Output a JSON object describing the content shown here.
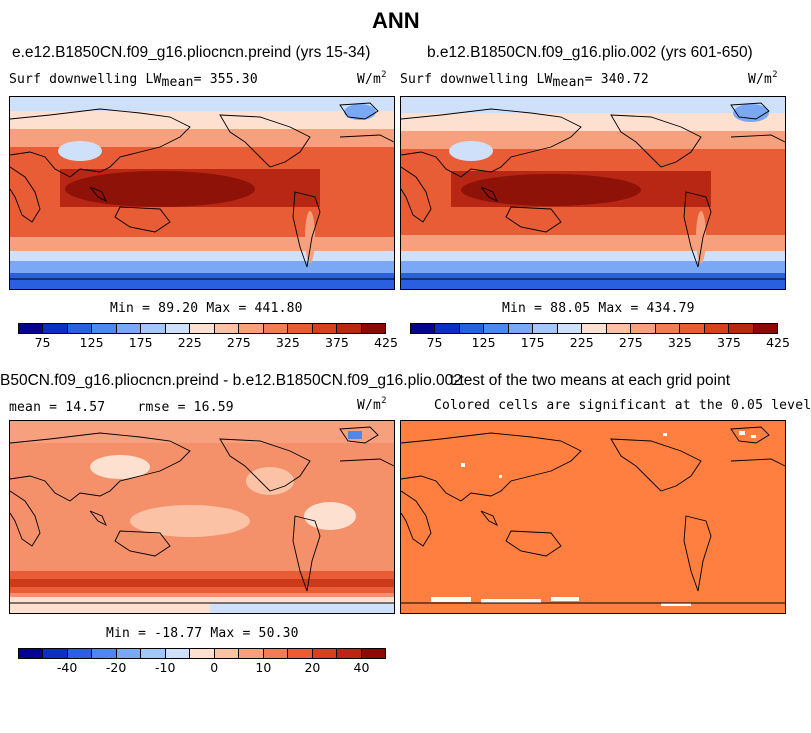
{
  "figure_title": "ANN",
  "units": {
    "prefix": "W/m",
    "exp": "2"
  },
  "panels": {
    "p1": {
      "title": "e.e12.B1850CN.f09_g16.pliocncn.preind (yrs 15-34)",
      "variable": "Surf downwelling LW",
      "mean_label": "mean",
      "mean": "355.30",
      "min": "89.20",
      "max": "441.80"
    },
    "p2": {
      "title": "b.e12.B1850CN.f09_g16.plio.002 (yrs 601-650)",
      "variable": "Surf downwelling LW",
      "mean_label": "mean",
      "mean": "340.72",
      "min": "88.05",
      "max": "434.79"
    },
    "p3": {
      "title": "B50CN.f09_g16.pliocncn.preind - b.e12.B1850CN.f09_g16.plio.002",
      "mean_label": "mean =",
      "mean": "14.57",
      "rmse_label": "rmse =",
      "rmse": "16.59",
      "min": "-18.77",
      "max": "50.30"
    },
    "p4": {
      "title": "t-test of the two means at each grid point",
      "subtitle": "Colored cells are significant at the 0.05 level"
    }
  },
  "minmax_labels": {
    "min": "Min =",
    "max": "Max ="
  },
  "colorbar_abs": {
    "colors": [
      "#04048c",
      "#0b2fc4",
      "#2a5fe0",
      "#4f86ef",
      "#7aa8f5",
      "#a4c6f8",
      "#cfe0fb",
      "#fde0cf",
      "#fbc2a6",
      "#f6a07d",
      "#f07d58",
      "#e85c36",
      "#d63f20",
      "#b82614",
      "#8c0a04"
    ],
    "ticks": [
      "75",
      "125",
      "175",
      "225",
      "275",
      "325",
      "375",
      "425"
    ]
  },
  "colorbar_diff": {
    "colors": [
      "#04048c",
      "#0b2fc4",
      "#2a5fe0",
      "#4f86ef",
      "#7aa8f5",
      "#a4c6f8",
      "#cfe0fb",
      "#fde0cf",
      "#fbc2a6",
      "#f6a07d",
      "#f07d58",
      "#e85c36",
      "#d63f20",
      "#b82614",
      "#8c0a04"
    ],
    "ticks": [
      "-40",
      "-20",
      "-10",
      "0",
      "10",
      "20",
      "40"
    ]
  },
  "map_palette": {
    "tropics": "#8f1208",
    "warm": "#c8321a",
    "mid": "#e8633a",
    "cool": "#f6a07d",
    "pale": "#fde0cf",
    "sub": "#cfe0fb",
    "cold": "#7aa8f5",
    "polar": "#2a5fe0",
    "diff_bg": "#f4916a",
    "diff_band": "#cc3a1c",
    "diff_pale": "#fbc2a6",
    "ttest": "#ff7f40"
  }
}
